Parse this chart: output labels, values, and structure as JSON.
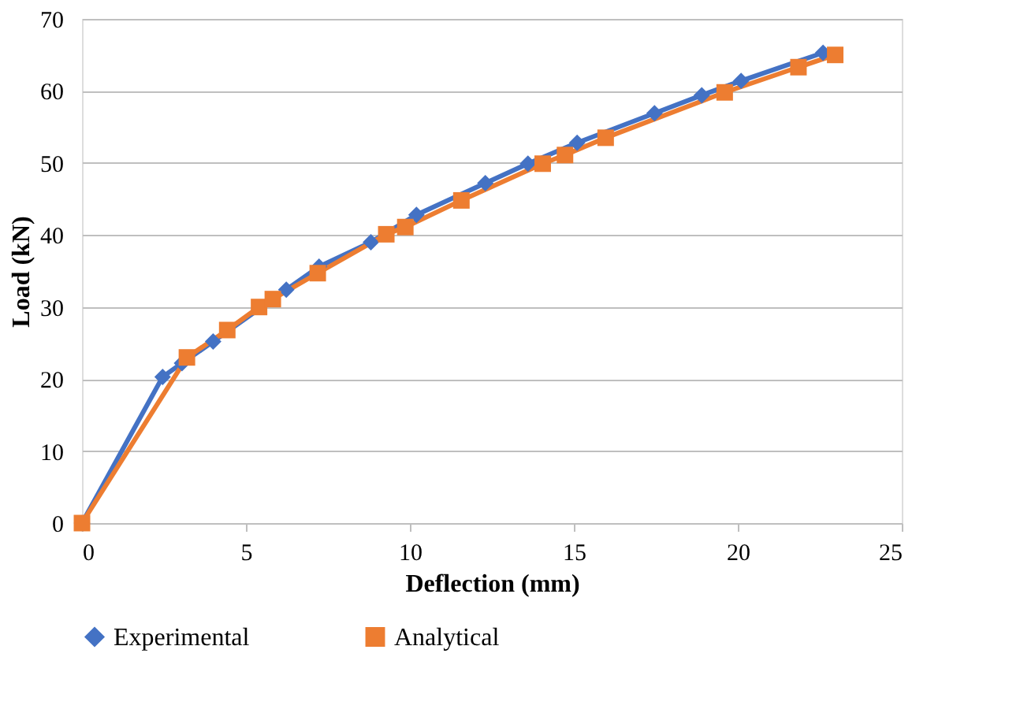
{
  "chart_data": {
    "type": "line",
    "xlabel": "Deflection (mm)",
    "ylabel": "Load (kN)",
    "xlim": [
      0,
      25
    ],
    "xticks": [
      0,
      5,
      10,
      15,
      20,
      25
    ],
    "ylim": [
      0,
      70
    ],
    "yticks": [
      0,
      10,
      20,
      30,
      40,
      50,
      60,
      70
    ],
    "grid": "y",
    "legend": "bottom",
    "line_style": "solid",
    "series": [
      {
        "name": "Experimental",
        "color": "#4472c4",
        "marker": "diamond",
        "x": [
          0,
          2.46,
          3.05,
          4.0,
          6.23,
          7.23,
          8.81,
          10.2,
          12.3,
          13.6,
          15.1,
          17.46,
          18.9,
          20.1,
          22.6
        ],
        "values": [
          0,
          20.3,
          22.2,
          25.2,
          32.4,
          35.6,
          39.0,
          42.8,
          47.2,
          49.9,
          52.8,
          56.9,
          59.4,
          61.4,
          65.3
        ]
      },
      {
        "name": "Analytical",
        "color": "#ed7d31",
        "marker": "square",
        "x": [
          0,
          3.2,
          4.43,
          5.4,
          5.82,
          7.19,
          9.28,
          9.86,
          11.57,
          14.05,
          14.73,
          15.97,
          19.6,
          21.85,
          22.97
        ],
        "values": [
          0,
          23.0,
          26.8,
          30.0,
          31.1,
          34.7,
          40.1,
          41.1,
          44.8,
          49.9,
          51.1,
          53.5,
          59.8,
          63.3,
          65.0
        ]
      }
    ]
  }
}
